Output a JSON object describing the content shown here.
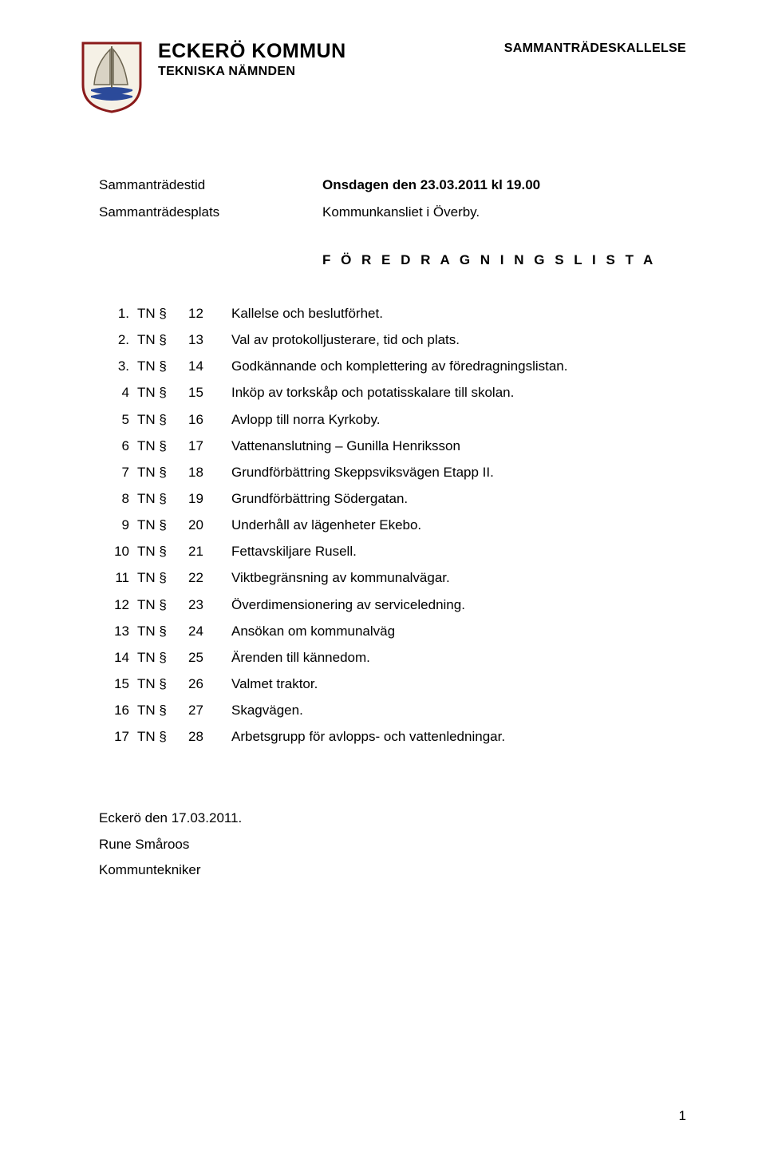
{
  "header": {
    "org_name": "ECKERÖ KOMMUN",
    "board_name": "TEKNISKA NÄMNDEN",
    "doc_type": "SAMMANTRÄDESKALLELSE"
  },
  "meta": {
    "time_label": "Sammanträdestid",
    "time_value": "Onsdagen den 23.03.2011 kl 19.00",
    "place_label": "Sammanträdesplats",
    "place_value": "Kommunkansliet i Överby."
  },
  "agenda_title": "F Ö R E D R A G N I N G S L I S T A",
  "agenda": [
    {
      "num": "1.",
      "tn": "TN §",
      "sec": "12",
      "text": "Kallelse och beslutförhet."
    },
    {
      "num": "2.",
      "tn": "TN §",
      "sec": "13",
      "text": "Val av protokolljusterare, tid och plats."
    },
    {
      "num": "3.",
      "tn": "TN §",
      "sec": "14",
      "text": "Godkännande och komplettering av föredragningslistan."
    },
    {
      "num": "4",
      "tn": "TN §",
      "sec": "15",
      "text": "Inköp av torkskåp och potatisskalare till skolan."
    },
    {
      "num": "5",
      "tn": "TN §",
      "sec": "16",
      "text": "Avlopp till norra Kyrkoby."
    },
    {
      "num": "6",
      "tn": "TN §",
      "sec": "17",
      "text": "Vattenanslutning – Gunilla Henriksson"
    },
    {
      "num": "7",
      "tn": "TN §",
      "sec": "18",
      "text": "Grundförbättring Skeppsviksvägen Etapp II."
    },
    {
      "num": "8",
      "tn": "TN §",
      "sec": "19",
      "text": "Grundförbättring Södergatan."
    },
    {
      "num": "9",
      "tn": "TN §",
      "sec": "20",
      "text": "Underhåll av lägenheter Ekebo."
    },
    {
      "num": "10",
      "tn": "TN §",
      "sec": "21",
      "text": "Fettavskiljare Rusell."
    },
    {
      "num": "11",
      "tn": "TN §",
      "sec": "22",
      "text": "Viktbegränsning av kommunalvägar."
    },
    {
      "num": "12",
      "tn": "TN §",
      "sec": "23",
      "text": "Överdimensionering av serviceledning."
    },
    {
      "num": "13",
      "tn": "TN §",
      "sec": "24",
      "text": "Ansökan om kommunalväg"
    },
    {
      "num": "14",
      "tn": "TN §",
      "sec": "25",
      "text": "Ärenden till kännedom."
    },
    {
      "num": "15",
      "tn": "TN §",
      "sec": "26",
      "text": "Valmet traktor."
    },
    {
      "num": "16",
      "tn": "TN §",
      "sec": "27",
      "text": "Skagvägen."
    },
    {
      "num": "17",
      "tn": "TN §",
      "sec": "28",
      "text": "Arbetsgrupp för avlopps- och vattenledningar."
    }
  ],
  "footer": {
    "place_date": "Eckerö den 17.03.2011.",
    "signer": "Rune Småroos",
    "title": "Kommuntekniker"
  },
  "page_number": "1",
  "logo": {
    "shield_stroke": "#8a1a1a",
    "shield_fill": "#f5f1e6",
    "sail_fill": "#d9d3c4",
    "sail_stroke": "#6b6450",
    "water_fill": "#2b4a9a"
  }
}
